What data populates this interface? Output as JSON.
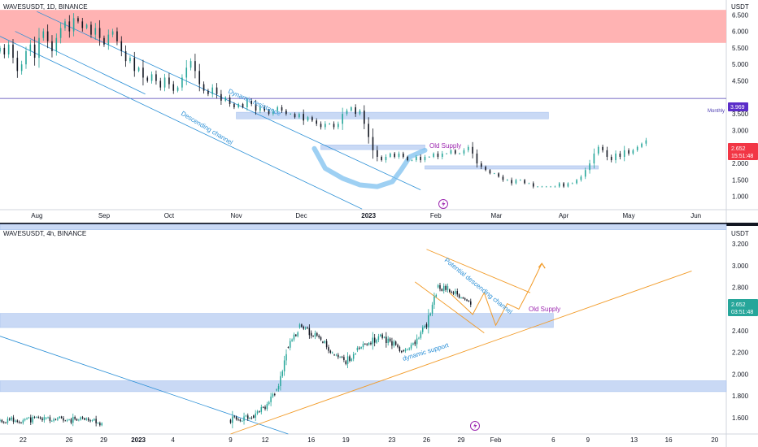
{
  "colors": {
    "up": "#26a69a",
    "down": "#131722",
    "supply_zone": "#ffb3b3",
    "blue_zone": "#c9d9f5",
    "channel": "#2a8fd6",
    "orange": "#f29b28",
    "monthly_line": "#4a3ab0",
    "cup": "#7ec0ef",
    "price_tag_top": "#f23645",
    "price_tag_bottom": "#26a69a",
    "monthly_tag": "#5b2dc9",
    "icon": "#9c27b0"
  },
  "chart_data": [
    {
      "type": "candlestick",
      "title": "WAVESUSDT, 1D, BINANCE",
      "y_axis_label": "USDT",
      "ylim": [
        0.6,
        6.9
      ],
      "yticks": [
        {
          "v": 6.5,
          "label": "6.500"
        },
        {
          "v": 6.0,
          "label": "6.000"
        },
        {
          "v": 5.5,
          "label": "5.500"
        },
        {
          "v": 5.0,
          "label": "5.000"
        },
        {
          "v": 4.5,
          "label": "4.500"
        },
        {
          "v": 3.5,
          "label": "3.500"
        },
        {
          "v": 3.0,
          "label": "3.000"
        },
        {
          "v": 2.0,
          "label": "2.000"
        },
        {
          "v": 1.5,
          "label": "1.500"
        },
        {
          "v": 1.0,
          "label": "1.000"
        }
      ],
      "x_start": "2022-07-15",
      "x_end": "2023-06-15",
      "xticks": [
        {
          "d": "2022-08-01",
          "label": "Aug"
        },
        {
          "d": "2022-09-01",
          "label": "Sep"
        },
        {
          "d": "2022-10-01",
          "label": "Oct"
        },
        {
          "d": "2022-11-01",
          "label": "Nov"
        },
        {
          "d": "2022-12-01",
          "label": "Dec"
        },
        {
          "d": "2023-01-01",
          "label": "2023"
        },
        {
          "d": "2023-02-01",
          "label": "Feb"
        },
        {
          "d": "2023-03-01",
          "label": "Mar"
        },
        {
          "d": "2023-04-01",
          "label": "Apr"
        },
        {
          "d": "2023-05-01",
          "label": "May"
        },
        {
          "d": "2023-06-01",
          "label": "Jun"
        }
      ],
      "first_candle": "2022-07-15",
      "closes": [
        5.5,
        5.3,
        5.6,
        5.2,
        4.8,
        5.0,
        5.4,
        5.6,
        5.2,
        5.8,
        6.0,
        5.7,
        5.4,
        5.8,
        6.1,
        6.3,
        6.0,
        6.4,
        6.3,
        6.1,
        6.2,
        5.9,
        6.1,
        5.8,
        5.6,
        5.9,
        6.0,
        5.7,
        5.4,
        5.1,
        5.2,
        4.8,
        4.9,
        4.6,
        4.5,
        4.7,
        4.5,
        4.3,
        4.6,
        4.4,
        4.2,
        4.3,
        4.6,
        4.9,
        5.1,
        4.8,
        4.4,
        4.2,
        4.1,
        4.3,
        4.1,
        3.9,
        4.0,
        3.8,
        3.7,
        3.8,
        3.7,
        3.9,
        3.8,
        3.6,
        3.7,
        3.6,
        3.5,
        3.6,
        3.7,
        3.6,
        3.5,
        3.5,
        3.4,
        3.5,
        3.3,
        3.4,
        3.3,
        3.2,
        3.1,
        3.2,
        3.2,
        3.1,
        3.2,
        3.5,
        3.6,
        3.7,
        3.5,
        3.6,
        3.2,
        2.8,
        2.4,
        2.2,
        2.1,
        2.2,
        2.3,
        2.2,
        2.3,
        2.2,
        2.1,
        2.1,
        2.2,
        2.1,
        2.2,
        2.2,
        2.3,
        2.2,
        2.3,
        2.3,
        2.4,
        2.3,
        2.3,
        2.4,
        2.5,
        2.3,
        2.0,
        1.9,
        1.8,
        1.7,
        1.7,
        1.6,
        1.5,
        1.5,
        1.4,
        1.5,
        1.5,
        1.4,
        1.4,
        1.3,
        1.3,
        1.3,
        1.3,
        1.3,
        1.3,
        1.4,
        1.3,
        1.4,
        1.4,
        1.5,
        1.6,
        1.8,
        2.0,
        2.3,
        2.5,
        2.4,
        2.2,
        2.1,
        2.3,
        2.2,
        2.4,
        2.3,
        2.4,
        2.5,
        2.6,
        2.7
      ],
      "levels": [
        {
          "name": "Monthly",
          "price": 3.969,
          "label": "3.969"
        }
      ],
      "zones": [
        {
          "from": "2022-07-15",
          "to": "2023-06-15",
          "low": 5.65,
          "high": 6.65
        },
        {
          "from": "2022-11-01",
          "to": "2023-03-25",
          "low": 3.35,
          "high": 3.55
        },
        {
          "from": "2022-12-10",
          "to": "2023-01-27",
          "low": 2.42,
          "high": 2.56
        },
        {
          "from": "2023-01-27",
          "to": "2023-04-17",
          "low": 1.83,
          "high": 1.93
        }
      ],
      "annotations": [
        "Dynamic resistance",
        "Descending channel",
        "Old Supply"
      ],
      "last_price": "2.652",
      "countdown": "15:51:48"
    },
    {
      "type": "candlestick",
      "title": "WAVESUSDT, 4h, BINANCE",
      "y_axis_label": "USDT",
      "ylim": [
        1.45,
        3.35
      ],
      "yticks": [
        {
          "v": 3.2,
          "label": "3.200"
        },
        {
          "v": 3.0,
          "label": "3.000"
        },
        {
          "v": 2.8,
          "label": "2.800"
        },
        {
          "v": 2.4,
          "label": "2.400"
        },
        {
          "v": 2.2,
          "label": "2.200"
        },
        {
          "v": 2.0,
          "label": "2.000"
        },
        {
          "v": 1.8,
          "label": "1.800"
        },
        {
          "v": 1.6,
          "label": "1.600"
        }
      ],
      "x_start": "2022-12-20",
      "x_end": "2023-02-21",
      "xticks": [
        {
          "d": "2022-12-22",
          "label": "22"
        },
        {
          "d": "2022-12-26",
          "label": "26"
        },
        {
          "d": "2022-12-29",
          "label": "29"
        },
        {
          "d": "2023-01-01",
          "label": "2023"
        },
        {
          "d": "2023-01-04",
          "label": "4"
        },
        {
          "d": "2023-01-09",
          "label": "9"
        },
        {
          "d": "2023-01-12",
          "label": "12"
        },
        {
          "d": "2023-01-16",
          "label": "16"
        },
        {
          "d": "2023-01-19",
          "label": "19"
        },
        {
          "d": "2023-01-23",
          "label": "23"
        },
        {
          "d": "2023-01-26",
          "label": "26"
        },
        {
          "d": "2023-01-29",
          "label": "29"
        },
        {
          "d": "2023-02-01",
          "label": "Feb"
        },
        {
          "d": "2023-02-06",
          "label": "6"
        },
        {
          "d": "2023-02-09",
          "label": "9"
        },
        {
          "d": "2023-02-13",
          "label": "13"
        },
        {
          "d": "2023-02-16",
          "label": "16"
        },
        {
          "d": "2023-02-20",
          "label": "20"
        }
      ],
      "zones": [
        {
          "from": "2022-12-20",
          "to": "2023-02-21",
          "low": 3.33,
          "high": 3.38
        },
        {
          "from": "2022-12-20",
          "to": "2023-02-06",
          "low": 2.43,
          "high": 2.56
        },
        {
          "from": "2022-12-20",
          "to": "2023-02-21",
          "low": 1.84,
          "high": 1.94
        }
      ],
      "annotations": [
        "Potential descending channel",
        "dynamic support",
        "Old Supply"
      ],
      "last_price": "2.652",
      "countdown": "03:51:48"
    }
  ]
}
